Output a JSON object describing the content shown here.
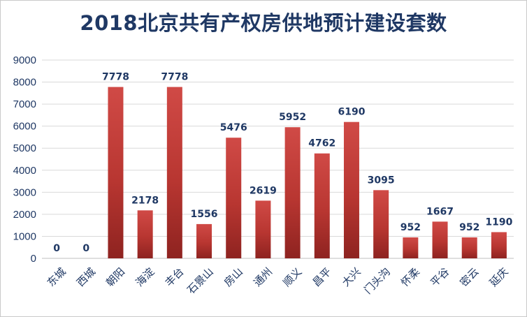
{
  "chart_data": {
    "type": "bar",
    "title": "2018北京共有产权房供地预计建设套数",
    "categories": [
      "东城",
      "西城",
      "朝阳",
      "海淀",
      "丰台",
      "石景山",
      "房山",
      "通州",
      "顺义",
      "昌平",
      "大兴",
      "门头沟",
      "怀柔",
      "平谷",
      "密云",
      "延庆"
    ],
    "values": [
      0,
      0,
      7778,
      2178,
      7778,
      1556,
      5476,
      2619,
      5952,
      4762,
      6190,
      3095,
      952,
      1667,
      952,
      1190
    ],
    "yticks": [
      "0",
      "1000",
      "2000",
      "3000",
      "4000",
      "5000",
      "6000",
      "7000",
      "8000",
      "9000"
    ],
    "ylim": [
      0,
      9000
    ],
    "grid": true,
    "legend": "none",
    "colors": {
      "bar": "#c0504d",
      "bar_dark": "#8e2320",
      "text": "#1f3864",
      "grid": "#d9d9d9"
    }
  }
}
